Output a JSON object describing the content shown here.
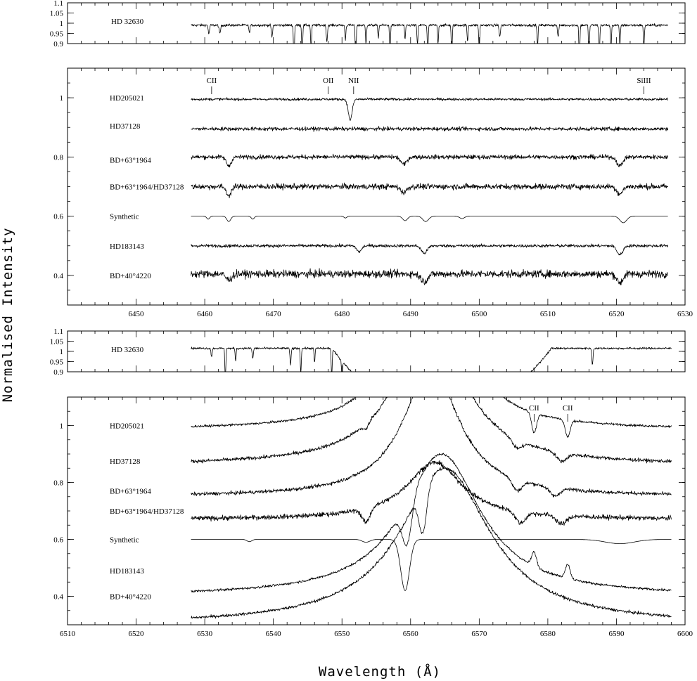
{
  "figure": {
    "xlabel": "Wavelength (Å)",
    "ylabel": "Normalised Intensity"
  },
  "chart_data": [
    {
      "type": "line",
      "panel": "reference-1",
      "xlim": [
        6440,
        6530
      ],
      "ylim": [
        0.9,
        1.1
      ],
      "yticks": [
        0.9,
        0.95,
        1,
        1.05,
        1.1
      ],
      "ytick_labels": [
        "0.9",
        "0.95",
        "1",
        "1.05",
        "1.1"
      ],
      "xticks": [],
      "series": [
        {
          "name": "HD 32630",
          "x_range": [
            6458,
            6527.5
          ],
          "level": 0.99,
          "noise": 0.006,
          "features": [
            [
              6460.6,
              0.045,
              0.12
            ],
            [
              6462.2,
              0.04,
              0.15
            ],
            [
              6466.5,
              0.04,
              0.1
            ],
            [
              6469.8,
              0.06,
              0.12
            ],
            [
              6473.0,
              0.18,
              0.1
            ],
            [
              6474.2,
              0.16,
              0.1
            ],
            [
              6475.5,
              0.12,
              0.1
            ],
            [
              6477.8,
              0.08,
              0.12
            ],
            [
              6480.5,
              0.07,
              0.1
            ],
            [
              6482.0,
              0.18,
              0.1
            ],
            [
              6483.5,
              0.09,
              0.1
            ],
            [
              6485.3,
              0.06,
              0.1
            ],
            [
              6487.0,
              0.14,
              0.1
            ],
            [
              6489.2,
              0.07,
              0.1
            ],
            [
              6491.0,
              0.1,
              0.1
            ],
            [
              6492.5,
              0.14,
              0.1
            ],
            [
              6494.0,
              0.09,
              0.1
            ],
            [
              6496.0,
              0.16,
              0.1
            ],
            [
              6498.3,
              0.08,
              0.1
            ],
            [
              6500.0,
              0.12,
              0.1
            ],
            [
              6503.0,
              0.06,
              0.12
            ],
            [
              6508.5,
              0.1,
              0.1
            ],
            [
              6511.5,
              0.06,
              0.12
            ],
            [
              6514.6,
              0.18,
              0.1
            ],
            [
              6516.0,
              0.16,
              0.1
            ],
            [
              6517.5,
              0.15,
              0.1
            ],
            [
              6519.2,
              0.12,
              0.1
            ],
            [
              6520.5,
              0.1,
              0.1
            ],
            [
              6524.0,
              0.11,
              0.1
            ]
          ]
        }
      ]
    },
    {
      "type": "line",
      "panel": "main-1",
      "xlim": [
        6440,
        6530
      ],
      "ylim": [
        0.3,
        1.1
      ],
      "yticks": [
        0.4,
        0.6,
        0.8,
        1
      ],
      "ytick_labels": [
        "0.4",
        "0.6",
        "0.8",
        "1"
      ],
      "xticks": [
        6450,
        6460,
        6470,
        6480,
        6490,
        6500,
        6510,
        6520,
        6530
      ],
      "xtick_labels": [
        "6450",
        "6460",
        "6470",
        "6480",
        "6490",
        "6500",
        "6510",
        "6520",
        "6530"
      ],
      "line_ids": [
        {
          "label": "CII",
          "x": 6461.0
        },
        {
          "label": "OII",
          "x": 6478.0
        },
        {
          "label": "NII",
          "x": 6481.7
        },
        {
          "label": "SiIII",
          "x": 6524.0
        }
      ],
      "series": [
        {
          "name": "HD205021",
          "x_range": [
            6458,
            6527.5
          ],
          "level": 0.995,
          "noise": 0.004,
          "label_y": 1.0,
          "features": [
            [
              6481.2,
              0.07,
              0.4
            ]
          ]
        },
        {
          "name": "HD37128",
          "x_range": [
            6458,
            6527.5
          ],
          "level": 0.895,
          "noise": 0.006,
          "label_y": 0.905,
          "features": []
        },
        {
          "name": "BD+63°1964",
          "x_range": [
            6458,
            6527.5
          ],
          "level": 0.8,
          "noise": 0.007,
          "label_y": 0.79,
          "features": [
            [
              6463.5,
              0.03,
              0.5
            ],
            [
              6489.0,
              0.025,
              0.6
            ],
            [
              6520.5,
              0.03,
              0.6
            ]
          ]
        },
        {
          "name": "BD+63°1964/HD37128",
          "x_range": [
            6458,
            6527.5
          ],
          "level": 0.7,
          "noise": 0.009,
          "label_y": 0.7,
          "features": [
            [
              6463.5,
              0.03,
              0.5
            ],
            [
              6489.0,
              0.02,
              0.6
            ],
            [
              6520.5,
              0.025,
              0.6
            ]
          ]
        },
        {
          "name": "Synthetic",
          "x_range": [
            6458,
            6527.5
          ],
          "level": 0.6,
          "noise": 0.0,
          "label_y": 0.6,
          "features": [
            [
              6460.5,
              0.01,
              0.3
            ],
            [
              6463.5,
              0.018,
              0.4
            ],
            [
              6467.0,
              0.01,
              0.3
            ],
            [
              6480.5,
              0.006,
              0.3
            ],
            [
              6489.2,
              0.015,
              0.5
            ],
            [
              6492.2,
              0.018,
              0.6
            ],
            [
              6497.5,
              0.008,
              0.5
            ],
            [
              6521.0,
              0.022,
              0.7
            ]
          ]
        },
        {
          "name": "HD183143",
          "x_range": [
            6458,
            6527.5
          ],
          "level": 0.5,
          "noise": 0.005,
          "label_y": 0.5,
          "features": [
            [
              6482.5,
              0.02,
              0.5
            ],
            [
              6492.0,
              0.025,
              0.6
            ],
            [
              6520.5,
              0.03,
              0.6
            ]
          ]
        },
        {
          "name": "BD+40°4220",
          "x_range": [
            6458,
            6527.5
          ],
          "level": 0.405,
          "noise": 0.012,
          "label_y": 0.4,
          "features": [
            [
              6463.5,
              0.02,
              0.6
            ],
            [
              6492.0,
              0.025,
              0.7
            ],
            [
              6520.5,
              0.03,
              0.6
            ]
          ]
        }
      ]
    },
    {
      "type": "line",
      "panel": "reference-2",
      "xlim": [
        6510,
        6600
      ],
      "ylim": [
        0.9,
        1.1
      ],
      "yticks": [
        0.9,
        0.95,
        1,
        1.05,
        1.1
      ],
      "ytick_labels": [
        "0.9",
        "0.95",
        "1",
        "1.05",
        "1.1"
      ],
      "xticks": [],
      "series": [
        {
          "name": "HD 32630",
          "x_range": [
            6528,
            6598
          ],
          "level": 1.015,
          "noise": 0.005,
          "features": [
            [
              6531.0,
              0.04,
              0.12
            ],
            [
              6533.0,
              0.15,
              0.1
            ],
            [
              6534.5,
              0.06,
              0.1
            ],
            [
              6537.0,
              0.05,
              0.12
            ],
            [
              6542.5,
              0.08,
              0.12
            ],
            [
              6544.0,
              0.12,
              0.1
            ],
            [
              6546.0,
              0.07,
              0.1
            ],
            [
              6548.5,
              0.14,
              0.1
            ],
            [
              6550.0,
              0.08,
              0.1
            ],
            [
              6575.0,
              0.1,
              0.1
            ],
            [
              6586.5,
              0.08,
              0.12
            ]
          ],
          "halpha": {
            "center": 6564.5,
            "half_width": 16.0,
            "depth": 0.35
          }
        }
      ]
    },
    {
      "type": "line",
      "panel": "main-2",
      "xlim": [
        6510,
        6600
      ],
      "ylim": [
        0.3,
        1.1
      ],
      "yticks": [
        0.4,
        0.6,
        0.8,
        1
      ],
      "ytick_labels": [
        "0.4",
        "0.6",
        "0.8",
        "1"
      ],
      "xticks": [
        6510,
        6520,
        6530,
        6540,
        6550,
        6560,
        6570,
        6580,
        6590,
        6600
      ],
      "xtick_labels": [
        "6510",
        "6520",
        "6530",
        "6540",
        "6550",
        "6560",
        "6570",
        "6580",
        "6590",
        "6600"
      ],
      "line_ids": [
        {
          "label": "CII",
          "x": 6578.0
        },
        {
          "label": "CII",
          "x": 6582.9
        }
      ],
      "series": [
        {
          "name": "HD205021",
          "x_range": [
            6528,
            6598
          ],
          "level": 0.985,
          "noise": 0.004,
          "label_y": 1.0,
          "emission": {
            "center": 6562.8,
            "peak": 1.6,
            "width": 3.0
          },
          "features": [
            [
              6578.0,
              0.07,
              0.5
            ],
            [
              6582.9,
              0.06,
              0.5
            ]
          ]
        },
        {
          "name": "HD37128",
          "x_range": [
            6528,
            6598
          ],
          "level": 0.86,
          "noise": 0.006,
          "label_y": 0.875,
          "emission": {
            "center": 6562.8,
            "peak": 0.5,
            "width": 6.0
          },
          "features": [
            [
              6553.5,
              0.02,
              0.5
            ],
            [
              6575.5,
              0.03,
              1.0
            ],
            [
              6582.0,
              0.03,
              1.0
            ]
          ]
        },
        {
          "name": "BD+63°1964",
          "x_range": [
            6528,
            6598
          ],
          "level": 0.75,
          "noise": 0.006,
          "label_y": 0.77,
          "emission": {
            "center": 6563.0,
            "peak": 0.45,
            "width": 5.0
          },
          "features": [
            [
              6575.5,
              0.04,
              1.0
            ],
            [
              6581.0,
              0.03,
              1.0
            ]
          ]
        },
        {
          "name": "BD+63°1964/HD37128",
          "x_range": [
            6528,
            6598
          ],
          "level": 0.67,
          "noise": 0.008,
          "label_y": 0.7,
          "emission": {
            "center": 6563.5,
            "peak": 0.2,
            "width": 5.0
          },
          "features": [
            [
              6553.5,
              0.05,
              0.8
            ],
            [
              6576.0,
              0.04,
              1.0
            ],
            [
              6582.0,
              0.03,
              1.0
            ]
          ]
        },
        {
          "name": "Synthetic",
          "x_range": [
            6528,
            6598
          ],
          "level": 0.6,
          "noise": 0.0,
          "label_y": 0.6,
          "emission": {
            "center": 6562.8,
            "peak": 0.0,
            "width": 1.0
          },
          "absorption": {
            "center": 6559.2,
            "depth": 0.18,
            "width": 0.9
          },
          "features": [
            [
              6536.5,
              0.008,
              0.5
            ],
            [
              6553.5,
              0.01,
              0.8
            ],
            [
              6590.5,
              0.015,
              3.0
            ]
          ]
        },
        {
          "name": "HD183143",
          "x_range": [
            6528,
            6598
          ],
          "level": 0.4,
          "noise": 0.004,
          "label_y": 0.49,
          "emission": {
            "center": 6564.5,
            "peak": 0.5,
            "width": 7.0
          },
          "absorption": {
            "center": 6559.5,
            "depth": 0.15,
            "width": 1.0
          },
          "features": [
            [
              6578.0,
              -0.05,
              0.5
            ],
            [
              6582.9,
              -0.05,
              0.5
            ]
          ]
        },
        {
          "name": "BD+40°4220",
          "x_range": [
            6528,
            6598
          ],
          "level": 0.3,
          "noise": 0.005,
          "label_y": 0.4,
          "emission": {
            "center": 6565.0,
            "peak": 0.55,
            "width": 8.0
          },
          "absorption": {
            "center": 6561.8,
            "depth": 0.15,
            "width": 0.8
          },
          "features": []
        }
      ]
    }
  ]
}
